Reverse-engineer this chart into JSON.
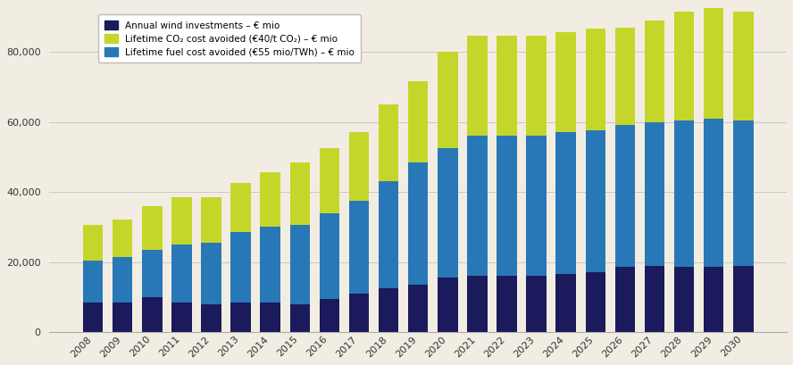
{
  "years": [
    2008,
    2009,
    2010,
    2011,
    2012,
    2013,
    2014,
    2015,
    2016,
    2017,
    2018,
    2019,
    2020,
    2021,
    2022,
    2023,
    2024,
    2025,
    2026,
    2027,
    2028,
    2029,
    2030
  ],
  "wind_investments": [
    8500,
    8500,
    10000,
    8500,
    8000,
    8500,
    8500,
    8000,
    9500,
    11000,
    12500,
    13500,
    15500,
    16000,
    16000,
    16000,
    16500,
    17000,
    18500,
    19000,
    18500,
    18500,
    19000
  ],
  "fuel_cost_avoided": [
    20500,
    21500,
    23500,
    25000,
    25500,
    28500,
    30000,
    30500,
    34000,
    37500,
    43000,
    48500,
    52500,
    56000,
    56000,
    56000,
    57000,
    57500,
    59000,
    60000,
    60500,
    61000,
    60500
  ],
  "co2_cost_avoided": [
    10000,
    10500,
    12500,
    13500,
    13000,
    14000,
    15500,
    18000,
    18500,
    19500,
    22000,
    23000,
    27500,
    28500,
    28500,
    28500,
    28500,
    29000,
    28000,
    29000,
    31000,
    31500,
    31000
  ],
  "color_wind": "#1a1a5c",
  "color_fuel": "#2878b8",
  "color_co2": "#c5d62a",
  "background_color": "#f2ede2",
  "grid_color": "#c8c8c8",
  "ylim": [
    0,
    93000
  ],
  "yticks": [
    0,
    20000,
    40000,
    60000,
    80000
  ],
  "legend_label_wind": "Annual wind investments – € mio",
  "legend_label_co2": "Lifetime CO₂ cost avoided (€40/t CO₂) – € mio",
  "legend_label_fuel": "Lifetime fuel cost avoided (€55 mio/TWh) – € mio",
  "bar_width": 0.68,
  "figsize": [
    8.88,
    4.09
  ],
  "dpi": 100
}
